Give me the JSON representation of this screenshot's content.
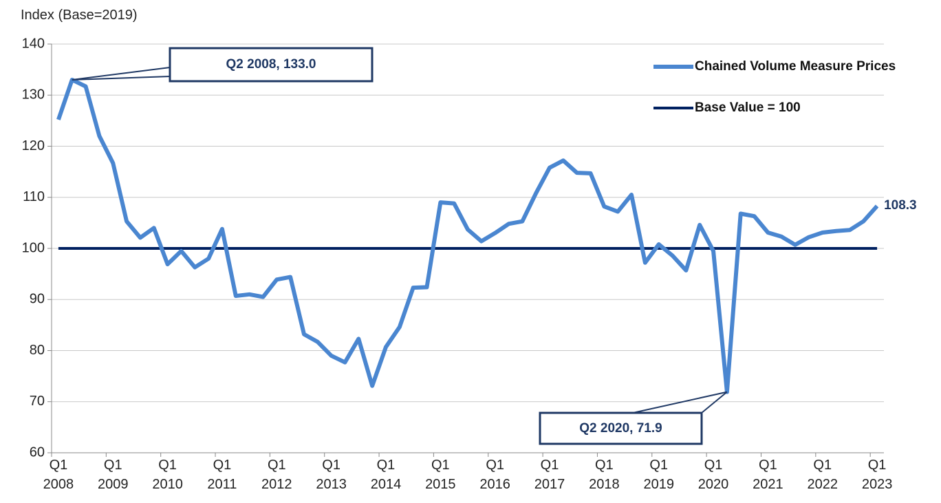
{
  "chart_data": {
    "type": "line",
    "y_axis_label": "Index (Base=2019)",
    "categories": [
      "Q1 2008",
      null,
      null,
      null,
      "Q1 2009",
      null,
      null,
      null,
      "Q1 2010",
      null,
      null,
      null,
      "Q1 2011",
      null,
      null,
      null,
      "Q1 2012",
      null,
      null,
      null,
      "Q1 2013",
      null,
      null,
      null,
      "Q1 2014",
      null,
      null,
      null,
      "Q1 2015",
      null,
      null,
      null,
      "Q1 2016",
      null,
      null,
      null,
      "Q1 2017",
      null,
      null,
      null,
      "Q1 2018",
      null,
      null,
      null,
      "Q1 2019",
      null,
      null,
      null,
      "Q1 2020",
      null,
      null,
      null,
      "Q1 2021",
      null,
      null,
      null,
      "Q1 2022",
      null,
      null,
      null,
      "Q1 2023"
    ],
    "series": [
      {
        "name": "Chained Volume Measure Prices",
        "color": "#4a86d0",
        "values": [
          125.2,
          133.0,
          131.7,
          122.0,
          116.7,
          105.3,
          102.1,
          104.0,
          96.9,
          99.5,
          96.3,
          98.0,
          103.8,
          90.7,
          91.0,
          90.5,
          93.9,
          94.4,
          83.2,
          81.7,
          79.0,
          77.7,
          82.3,
          73.1,
          80.7,
          84.6,
          92.3,
          92.4,
          109.0,
          108.8,
          103.7,
          101.4,
          103.0,
          104.8,
          105.3,
          110.8,
          115.8,
          117.2,
          114.8,
          114.7,
          108.2,
          107.2,
          110.5,
          97.2,
          100.8,
          98.6,
          95.7,
          104.6,
          99.5,
          71.9,
          106.8,
          106.3,
          103.1,
          102.3,
          100.7,
          102.2,
          103.1,
          103.4,
          103.6,
          105.3,
          108.3
        ],
        "value_labels": [
          null,
          "Q2 2008, 133.0",
          null,
          null,
          null,
          null,
          null,
          null,
          null,
          null,
          null,
          null,
          null,
          null,
          null,
          null,
          null,
          null,
          null,
          null,
          null,
          null,
          null,
          null,
          null,
          null,
          null,
          null,
          null,
          null,
          null,
          null,
          null,
          null,
          null,
          null,
          null,
          null,
          null,
          null,
          null,
          null,
          null,
          null,
          null,
          null,
          null,
          null,
          null,
          "Q2 2020, 71.9",
          null,
          null,
          null,
          null,
          null,
          null,
          null,
          null,
          null,
          null,
          "108.3"
        ]
      },
      {
        "name": "Base Value = 100",
        "color": "#002060",
        "values": [
          100,
          100,
          100,
          100,
          100,
          100,
          100,
          100,
          100,
          100,
          100,
          100,
          100,
          100,
          100,
          100,
          100,
          100,
          100,
          100,
          100,
          100,
          100,
          100,
          100,
          100,
          100,
          100,
          100,
          100,
          100,
          100,
          100,
          100,
          100,
          100,
          100,
          100,
          100,
          100,
          100,
          100,
          100,
          100,
          100,
          100,
          100,
          100,
          100,
          100,
          100,
          100,
          100,
          100,
          100,
          100,
          100,
          100,
          100,
          100,
          100
        ]
      }
    ],
    "ylim": [
      60,
      140
    ],
    "yticks": [
      60,
      70,
      80,
      90,
      100,
      110,
      120,
      130,
      140
    ],
    "grid": true,
    "legend": "upper right"
  }
}
